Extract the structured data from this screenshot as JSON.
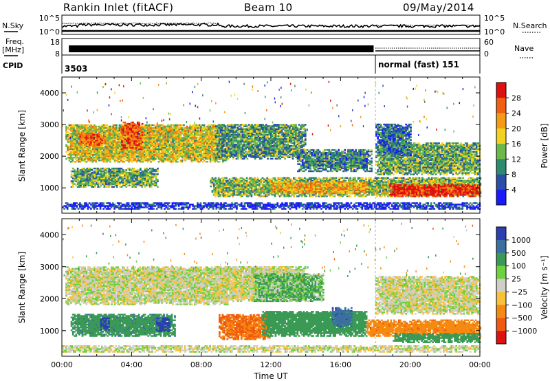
{
  "header": {
    "station": "Rankin Inlet (fitACF)",
    "beam": "Beam 10",
    "date": "09/May/2014"
  },
  "noise_panel": {
    "left_label": "N.Sky",
    "right_label": "N.Search",
    "left_ticks": [
      "10^5",
      "10^0"
    ],
    "right_ticks": [
      "10^5",
      "10^0"
    ]
  },
  "freq_panel": {
    "left_label_1": "Freq.",
    "left_label_2": "[MHz]",
    "right_label": "Nave",
    "left_ticks": [
      "18",
      "8"
    ],
    "right_ticks": [
      "60",
      "0"
    ]
  },
  "cpid_panel": {
    "label": "CPID",
    "segments": [
      {
        "text": "3503",
        "start_hour": 0
      },
      {
        "text": "normal (fast) 151",
        "start_hour": 18
      }
    ]
  },
  "chart_data": [
    {
      "type": "heatmap",
      "name": "power",
      "ylabel": "Slant Range [km]",
      "xlabel": "Time UT",
      "x_range_hours": [
        0,
        24
      ],
      "ylim": [
        200,
        4500
      ],
      "yticks": [
        1000,
        2000,
        3000,
        4000
      ],
      "colorbar_label": "Power [dB]",
      "colorbar_ticks": [
        "4",
        "8",
        "12",
        "16",
        "20",
        "24",
        "28"
      ],
      "colorbar_colors": [
        "#1a1aff",
        "#2b4fa8",
        "#2e8c6e",
        "#6cb84a",
        "#f2d21e",
        "#f59a14",
        "#f06010",
        "#e01010"
      ],
      "bands": [
        {
          "t0": 0.2,
          "t1": 9.5,
          "r0": 1800,
          "r1": 3000,
          "level": 0.55
        },
        {
          "t0": 3.4,
          "t1": 4.6,
          "r0": 2200,
          "r1": 3100,
          "level": 0.85
        },
        {
          "t0": 1.0,
          "t1": 2.5,
          "r0": 2300,
          "r1": 2700,
          "level": 0.8
        },
        {
          "t0": 8.8,
          "t1": 14.0,
          "r0": 1900,
          "r1": 3000,
          "level": 0.35
        },
        {
          "t0": 13.5,
          "t1": 17.8,
          "r0": 1500,
          "r1": 2200,
          "level": 0.3
        },
        {
          "t0": 0.5,
          "t1": 5.5,
          "r0": 1000,
          "r1": 1600,
          "level": 0.4
        },
        {
          "t0": 8.5,
          "t1": 24.0,
          "r0": 700,
          "r1": 1300,
          "level": 0.45
        },
        {
          "t0": 12.0,
          "t1": 17.5,
          "r0": 800,
          "r1": 1200,
          "level": 0.65
        },
        {
          "t0": 18.8,
          "t1": 24.0,
          "r0": 700,
          "r1": 1100,
          "level": 0.92
        },
        {
          "t0": 18.0,
          "t1": 24.0,
          "r0": 1400,
          "r1": 2400,
          "level": 0.4
        },
        {
          "t0": 18.0,
          "t1": 20.0,
          "r0": 2000,
          "r1": 3000,
          "level": 0.25
        },
        {
          "t0": 0.0,
          "t1": 24.0,
          "r0": 300,
          "r1": 500,
          "level": 0.1
        }
      ]
    },
    {
      "type": "heatmap",
      "name": "velocity",
      "ylabel": "Slant Range [km]",
      "xlabel": "Time UT",
      "x_range_hours": [
        0,
        24
      ],
      "ylim": [
        200,
        4500
      ],
      "yticks": [
        1000,
        2000,
        3000,
        4000
      ],
      "xticks": [
        "00:00",
        "04:00",
        "08:00",
        "12:00",
        "16:00",
        "20:00",
        "00:00"
      ],
      "colorbar_label": "Velocity [m s⁻¹]",
      "colorbar_ticks": [
        "1000",
        "500",
        "100",
        "25",
        "−25",
        "−100",
        "−500",
        "−1000"
      ],
      "colorbar_colors": [
        "#2b3fb0",
        "#3a6fa0",
        "#3a9a55",
        "#6fd040",
        "#cfcfc8",
        "#f6c23a",
        "#f58a12",
        "#f05a10",
        "#e01010"
      ],
      "bands": [
        {
          "t0": 0.2,
          "t1": 9.5,
          "r0": 1800,
          "r1": 3000,
          "vel": 0
        },
        {
          "t0": 8.8,
          "t1": 14.0,
          "r0": 1900,
          "r1": 3000,
          "vel": 0
        },
        {
          "t0": 18.0,
          "t1": 24.0,
          "r0": 1500,
          "r1": 2700,
          "vel": 0
        },
        {
          "t0": 0.5,
          "t1": 6.5,
          "r0": 800,
          "r1": 1500,
          "vel": 250
        },
        {
          "t0": 2.2,
          "t1": 2.7,
          "r0": 1000,
          "r1": 1400,
          "vel": 1000
        },
        {
          "t0": 5.4,
          "t1": 6.2,
          "r0": 950,
          "r1": 1400,
          "vel": 1000
        },
        {
          "t0": 9.0,
          "t1": 12.0,
          "r0": 700,
          "r1": 1500,
          "vel": -300
        },
        {
          "t0": 11.5,
          "t1": 17.5,
          "r0": 800,
          "r1": 1600,
          "vel": 200
        },
        {
          "t0": 15.5,
          "t1": 16.6,
          "r0": 1100,
          "r1": 1700,
          "vel": 700
        },
        {
          "t0": 17.5,
          "t1": 24.0,
          "r0": 800,
          "r1": 1300,
          "vel": -250
        },
        {
          "t0": 19.0,
          "t1": 24.0,
          "r0": 600,
          "r1": 900,
          "vel": 150
        },
        {
          "t0": 11.0,
          "t1": 15.0,
          "r0": 1900,
          "r1": 2800,
          "vel": 60
        },
        {
          "t0": 0.0,
          "t1": 24.0,
          "r0": 300,
          "r1": 500,
          "vel": 0
        }
      ]
    }
  ]
}
